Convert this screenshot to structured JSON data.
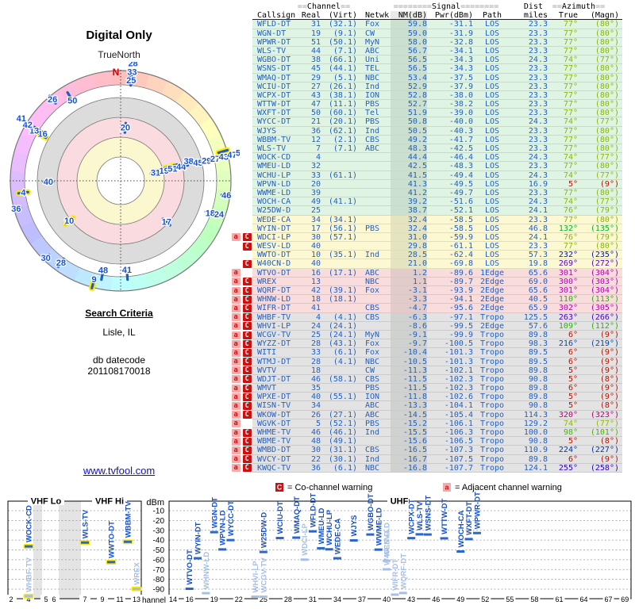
{
  "polar": {
    "title": "Digital Only",
    "north_ref": "TrueNorth",
    "north_letter": "N",
    "extra_labels": [
      {
        "t": "50",
        "az": 329,
        "r": 118,
        "vhf": false
      },
      {
        "t": "9",
        "az": 195,
        "r": 129,
        "vhf": true
      },
      {
        "t": "48",
        "az": 191,
        "r": 115,
        "vhf": false
      },
      {
        "t": "41",
        "az": 176,
        "r": 113,
        "vhf": false
      }
    ]
  },
  "criteria": {
    "heading": "Search Criteria",
    "location": "Lisle, IL",
    "datecode_label": "db datecode",
    "datecode": "201108170018",
    "link": "www.tvfool.com"
  },
  "table_headers": {
    "channel_pre": "==",
    "channel": "Channel",
    "channel_post": "==",
    "signal_pre": "========",
    "signal": "Signal",
    "signal_post": "========",
    "dist": "Dist",
    "azimuth_pre": "==",
    "azimuth": "Azimuth",
    "azimuth_post": "==",
    "callsign": "Callsign",
    "real": "Real",
    "virt": "(Virt)",
    "netwk": "Netwk",
    "nm": "NM(dB)",
    "pwr": "Pwr(dBm)",
    "path": "Path",
    "miles": "miles",
    "true": "True",
    "magn": "(Magn)"
  },
  "stations": [
    [
      "WFLD-DT",
      31,
      "(32.1)",
      "Fox",
      "59.8",
      "-31.1",
      "LOS",
      "23.3",
      77,
      "(80°)",
      "g",
      ""
    ],
    [
      "WGN-DT",
      19,
      "(9.1)",
      "CW",
      "59.0",
      "-31.9",
      "LOS",
      "23.3",
      77,
      "(80°)",
      "g",
      ""
    ],
    [
      "WPWR-DT",
      51,
      "(50.1)",
      "MyN",
      "58.0",
      "-32.8",
      "LOS",
      "23.3",
      77,
      "(80°)",
      "g",
      ""
    ],
    [
      "WLS-TV",
      44,
      "(7.1)",
      "ABC",
      "56.7",
      "-34.1",
      "LOS",
      "23.3",
      77,
      "(80°)",
      "g",
      ""
    ],
    [
      "WGBO-DT",
      38,
      "(66.1)",
      "Uni",
      "56.5",
      "-34.3",
      "LOS",
      "24.3",
      74,
      "(77°)",
      "g",
      ""
    ],
    [
      "WSNS-DT",
      45,
      "(44.1)",
      "TEL",
      "56.5",
      "-34.3",
      "LOS",
      "23.3",
      77,
      "(80°)",
      "g",
      ""
    ],
    [
      "WMAQ-DT",
      29,
      "(5.1)",
      "NBC",
      "53.4",
      "-37.5",
      "LOS",
      "23.3",
      77,
      "(80°)",
      "g",
      ""
    ],
    [
      "WCIU-DT",
      27,
      "(26.1)",
      "Ind",
      "52.9",
      "-37.9",
      "LOS",
      "23.3",
      77,
      "(80°)",
      "g",
      ""
    ],
    [
      "WCPX-DT",
      43,
      "(38.1)",
      "ION",
      "52.8",
      "-38.0",
      "LOS",
      "23.3",
      77,
      "(80°)",
      "g",
      ""
    ],
    [
      "WTTW-DT",
      47,
      "(11.1)",
      "PBS",
      "52.7",
      "-38.2",
      "LOS",
      "23.3",
      77,
      "(80°)",
      "g",
      ""
    ],
    [
      "WXFT-DT",
      50,
      "(60.1)",
      "Tel",
      "51.9",
      "-39.0",
      "LOS",
      "23.3",
      77,
      "(80°)",
      "g",
      ""
    ],
    [
      "WYCC-DT",
      21,
      "(20.1)",
      "PBS",
      "50.8",
      "-40.0",
      "LOS",
      "24.3",
      74,
      "(77°)",
      "g",
      ""
    ],
    [
      "WJYS",
      36,
      "(62.1)",
      "Ind",
      "50.5",
      "-40.3",
      "LOS",
      "23.3",
      77,
      "(80°)",
      "g",
      ""
    ],
    [
      "WBBM-TV",
      12,
      "(2.1)",
      "CBS",
      "49.2",
      "-41.7",
      "LOS",
      "23.3",
      77,
      "(80°)",
      "g",
      ""
    ],
    [
      "WLS-TV",
      7,
      "(7.1)",
      "ABC",
      "48.3",
      "-42.5",
      "LOS",
      "23.3",
      77,
      "(80°)",
      "g",
      ""
    ],
    [
      "WOCK-CD",
      4,
      "",
      "",
      "44.4",
      "-46.4",
      "LOS",
      "24.3",
      74,
      "(77°)",
      "g",
      ""
    ],
    [
      "WMEU-LD",
      32,
      "",
      "",
      "42.5",
      "-48.3",
      "LOS",
      "23.3",
      77,
      "(80°)",
      "g",
      ""
    ],
    [
      "WCHU-LP",
      33,
      "(61.1)",
      "",
      "41.5",
      "-49.4",
      "LOS",
      "24.3",
      74,
      "(77°)",
      "g",
      ""
    ],
    [
      "WPVN-LD",
      20,
      "",
      "",
      "41.3",
      "-49.5",
      "LOS",
      "16.9",
      5,
      "(9°)",
      "g",
      ""
    ],
    [
      "WWME-LD",
      39,
      "",
      "",
      "41.2",
      "-49.7",
      "LOS",
      "23.3",
      77,
      "(80°)",
      "g",
      ""
    ],
    [
      "WOCH-CA",
      49,
      "(41.1)",
      "",
      "39.2",
      "-51.6",
      "LOS",
      "24.3",
      74,
      "(77°)",
      "g",
      ""
    ],
    [
      "W25DW-D",
      25,
      "",
      "",
      "38.7",
      "-52.1",
      "LOS",
      "24.1",
      76,
      "(79°)",
      "g",
      ""
    ],
    [
      "WEDE-CA",
      34,
      "(34.1)",
      "",
      "32.4",
      "-58.5",
      "LOS",
      "23.3",
      77,
      "(80°)",
      "y",
      ""
    ],
    [
      "WYIN-DT",
      17,
      "(56.1)",
      "PBS",
      "32.4",
      "-58.5",
      "LOS",
      "46.8",
      132,
      "(135°)",
      "y",
      ""
    ],
    [
      "WDCI-LP",
      30,
      "(57.1)",
      "",
      "31.0",
      "-59.9",
      "LOS",
      "24.1",
      76,
      "(79°)",
      "y",
      "aC"
    ],
    [
      "WESV-LD",
      40,
      "",
      "",
      "29.8",
      "-61.1",
      "LOS",
      "23.3",
      77,
      "(80°)",
      "y",
      "C"
    ],
    [
      "WWTO-DT",
      10,
      "(35.1)",
      "Ind",
      "28.5",
      "-62.4",
      "LOS",
      "57.3",
      232,
      "(235°)",
      "y",
      ""
    ],
    [
      "W40CN-D",
      40,
      "",
      "",
      "21.0",
      "-69.8",
      "LOS",
      "19.8",
      269,
      "(272°)",
      "y",
      "C"
    ],
    [
      "WTVO-DT",
      16,
      "(17.1)",
      "ABC",
      "1.2",
      "-89.6",
      "1Edge",
      "65.6",
      301,
      "(304°)",
      "p",
      "a"
    ],
    [
      "WREX",
      13,
      "",
      "NBC",
      "1.1",
      "-89.7",
      "2Edge",
      "69.0",
      300,
      "(303°)",
      "p",
      "aC"
    ],
    [
      "WQRF-DT",
      42,
      "(39.1)",
      "Fox",
      "-3.1",
      "-93.9",
      "2Edge",
      "65.6",
      301,
      "(304°)",
      "p",
      "aC"
    ],
    [
      "WHNW-LD",
      18,
      "(18.1)",
      "",
      "-3.3",
      "-94.1",
      "2Edge",
      "40.5",
      110,
      "(113°)",
      "p",
      "aC"
    ],
    [
      "WIFR-DT",
      41,
      "",
      "CBS",
      "-4.7",
      "-95.6",
      "2Edge",
      "65.9",
      302,
      "(305°)",
      "p",
      "aC"
    ],
    [
      "WHBF-TV",
      4,
      "(4.1)",
      "CBS",
      "-6.3",
      "-97.1",
      "Tropo",
      "125.5",
      263,
      "(266°)",
      "x",
      "aC"
    ],
    [
      "WHVI-LP",
      24,
      "(24.1)",
      "",
      "-8.6",
      "-99.5",
      "2Edge",
      "57.6",
      109,
      "(112°)",
      "x",
      "aC"
    ],
    [
      "WCGV-TV",
      25,
      "(24.1)",
      "MyN",
      "-9.1",
      "-99.9",
      "Tropo",
      "89.8",
      6,
      "(9°)",
      "x",
      "aC"
    ],
    [
      "WYZZ-DT",
      28,
      "(43.1)",
      "Fox",
      "-9.7",
      "-100.5",
      "Tropo",
      "98.3",
      216,
      "(219°)",
      "x",
      "aC"
    ],
    [
      "WITI",
      33,
      "(6.1)",
      "Fox",
      "-10.4",
      "-101.3",
      "Tropo",
      "89.5",
      6,
      "(9°)",
      "x",
      "aC"
    ],
    [
      "WTMJ-DT",
      28,
      "(4.1)",
      "NBC",
      "-10.5",
      "-101.3",
      "Tropo",
      "89.5",
      6,
      "(9°)",
      "x",
      "aC"
    ],
    [
      "WVTV",
      18,
      "",
      "CW",
      "-11.3",
      "-102.1",
      "Tropo",
      "89.8",
      5,
      "(9°)",
      "x",
      "aC"
    ],
    [
      "WDJT-DT",
      46,
      "(58.1)",
      "CBS",
      "-11.5",
      "-102.3",
      "Tropo",
      "90.8",
      5,
      "(8°)",
      "x",
      "aC"
    ],
    [
      "WMVT",
      35,
      "",
      "PBS",
      "-11.5",
      "-102.3",
      "Tropo",
      "89.8",
      6,
      "(9°)",
      "x",
      "aC"
    ],
    [
      "WPXE-DT",
      40,
      "(55.1)",
      "ION",
      "-11.8",
      "-102.6",
      "Tropo",
      "89.8",
      5,
      "(9°)",
      "x",
      "aC"
    ],
    [
      "WISN-TV",
      34,
      "",
      "ABC",
      "-13.3",
      "-104.1",
      "Tropo",
      "90.8",
      5,
      "(8°)",
      "x",
      "aC"
    ],
    [
      "WKOW-DT",
      26,
      "(27.1)",
      "ABC",
      "-14.5",
      "-105.4",
      "Tropo",
      "114.3",
      320,
      "(323°)",
      "x",
      "aC"
    ],
    [
      "WGVK-DT",
      5,
      "(52.1)",
      "PBS",
      "-15.2",
      "-106.1",
      "Tropo",
      "129.2",
      74,
      "(77°)",
      "x",
      "a"
    ],
    [
      "WHME-TV",
      46,
      "(46.1)",
      "Ind",
      "-15.5",
      "-106.3",
      "Tropo",
      "100.0",
      98,
      "(101°)",
      "x",
      "aC"
    ],
    [
      "WBME-TV",
      48,
      "(49.1)",
      "",
      "-15.6",
      "-106.5",
      "Tropo",
      "90.8",
      5,
      "(8°)",
      "x",
      "aC"
    ],
    [
      "WMBD-DT",
      30,
      "(31.1)",
      "CBS",
      "-16.5",
      "-107.3",
      "Tropo",
      "110.9",
      224,
      "(227°)",
      "x",
      "aC"
    ],
    [
      "WVCY-DT",
      22,
      "(30.1)",
      "Ind",
      "-16.7",
      "-107.5",
      "Tropo",
      "89.8",
      6,
      "(9°)",
      "x",
      "aC"
    ],
    [
      "KWQC-TV",
      36,
      "(6.1)",
      "NBC",
      "-16.8",
      "-107.7",
      "Tropo",
      "124.1",
      255,
      "(258°)",
      "x",
      "aC"
    ]
  ],
  "charts": {
    "legend": {
      "co_badge": "C",
      "co_label": "= Co-channel warning",
      "adj_badge": "a",
      "adj_label": "= Adjacent channel warning"
    },
    "sections": {
      "vhf_lo": "VHF Lo",
      "vhf_hi": "VHF Hi",
      "uhf": "UHF"
    },
    "axis": {
      "unit": "dBm",
      "channel_label": "Channel",
      "db_ticks": [
        -10,
        -20,
        -30,
        -40,
        -50,
        -60,
        -70,
        -80,
        -90
      ],
      "vhf_ticks": [
        2,
        4,
        5,
        6,
        7,
        9,
        11,
        13
      ],
      "uhf_ticks": [
        14,
        16,
        19,
        22,
        25,
        28,
        31,
        34,
        37,
        40,
        43,
        46,
        49,
        52,
        55,
        58,
        61,
        64,
        67,
        69
      ]
    }
  },
  "chart_data": [
    {
      "type": "radar",
      "title": "Digital Only",
      "center_label": "TrueNorth",
      "encoding": "spoke angle = true azimuth; radius = received power (center strongest)",
      "points_from": "stations[] fields: real channel, azimuth, pwr_dbm"
    },
    {
      "type": "scatter",
      "title": "VHF Lo / VHF Hi",
      "xlabel": "Channel",
      "ylabel": "dBm",
      "ylim": [
        -90,
        -10
      ],
      "xticks": [
        2,
        4,
        5,
        6,
        7,
        9,
        11,
        13
      ],
      "points_from": "stations[] with real channel <= 13: (real, pwr_dbm)"
    },
    {
      "type": "scatter",
      "title": "UHF",
      "xlabel": "Channel",
      "ylabel": "dBm",
      "ylim": [
        -90,
        -10
      ],
      "xticks": [
        14,
        16,
        19,
        22,
        25,
        28,
        31,
        34,
        37,
        40,
        43,
        46,
        49,
        52,
        55,
        58,
        61,
        64,
        67,
        69
      ],
      "points_from": "stations[] with real channel >= 14: (real, pwr_dbm)"
    }
  ],
  "colors": {
    "band_g": "#dff4e2",
    "band_y": "#fbf8d2",
    "band_p": "#f9dcdc",
    "band_x": "#e3e3e3",
    "table_blue": "#2160c4",
    "spoke_blue": "#1f5ebe",
    "vhf_yellow": "#ffe800",
    "label_blue": "#1952cc",
    "dim_blue": "#a6bfe8",
    "co_red": "#cc1111",
    "adj_pink": "#f6aaaa"
  }
}
